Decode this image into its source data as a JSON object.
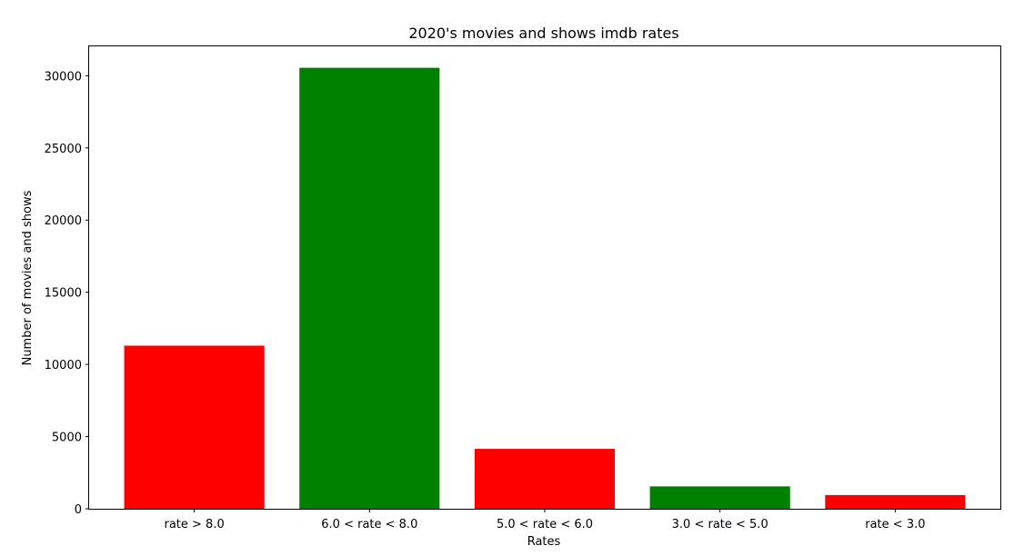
{
  "chart_data": {
    "type": "bar",
    "title": "2020's movies and shows imdb rates",
    "xlabel": "Rates",
    "ylabel": "Number of movies and shows",
    "categories": [
      "rate > 8.0",
      "6.0 < rate < 8.0",
      "5.0 < rate < 6.0",
      "3.0 < rate < 5.0",
      "rate < 3.0"
    ],
    "values": [
      11300,
      30550,
      4150,
      1550,
      950
    ],
    "colors": [
      "#ff0000",
      "#008000",
      "#ff0000",
      "#008000",
      "#ff0000"
    ],
    "ylim": [
      0,
      32100
    ],
    "yticks": [
      0,
      5000,
      10000,
      15000,
      20000,
      25000,
      30000
    ],
    "ytick_labels": [
      "0",
      "5000",
      "10000",
      "15000",
      "20000",
      "25000",
      "30000"
    ],
    "grid": false,
    "legend": "none"
  }
}
